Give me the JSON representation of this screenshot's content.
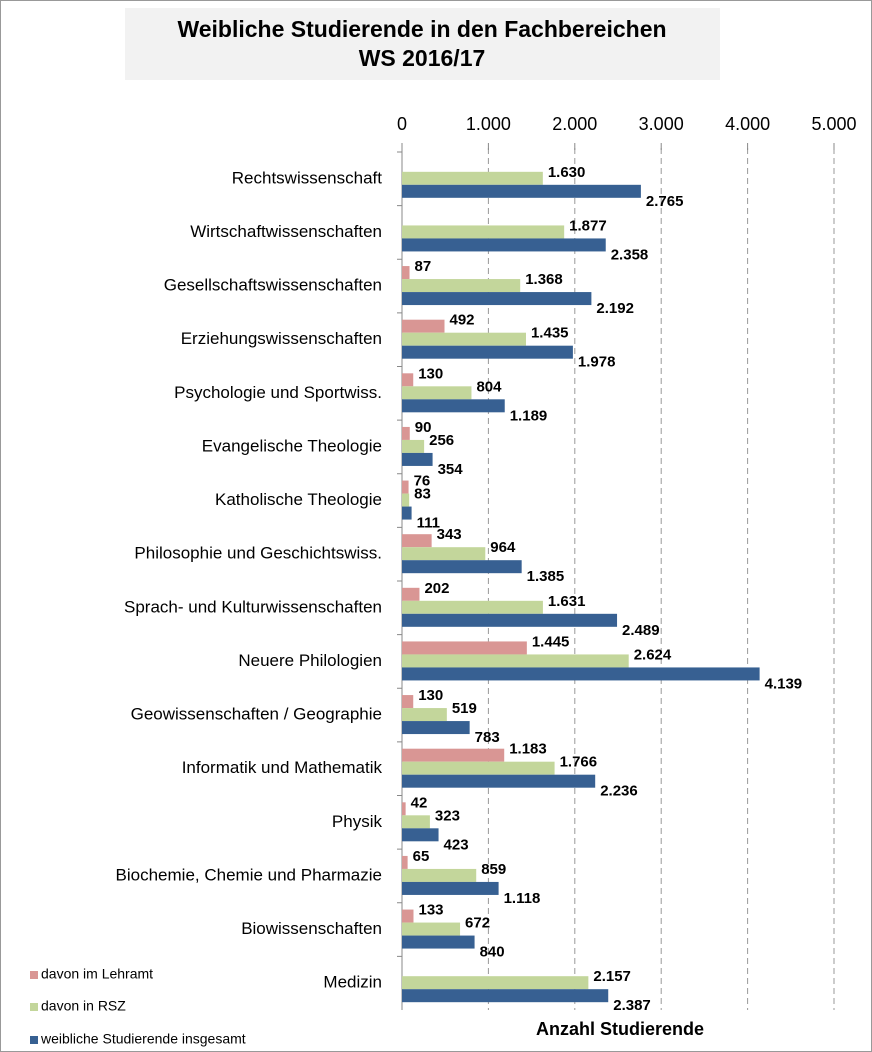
{
  "chart_data": {
    "type": "bar",
    "orientation": "horizontal",
    "title": "Weibliche Studierende in den Fachbereichen",
    "subtitle": "WS 2016/17",
    "x_label": "Anzahl Studierende",
    "categories": [
      "Rechtswissenschaft",
      "Wirtschaftwissenschaften",
      "Gesellschaftswissenschaften",
      "Erziehungswissenschaften",
      "Psychologie und Sportwiss.",
      "Evangelische Theologie",
      "Katholische Theologie",
      "Philosophie und Geschichtswiss.",
      "Sprach- und Kulturwissenschaften",
      "Neuere Philologien",
      "Geowissenschaften / Geographie",
      "Informatik und Mathematik",
      "Physik",
      "Biochemie, Chemie und Pharmazie",
      "Biowissenschaften",
      "Medizin"
    ],
    "series": [
      {
        "name": "davon im Lehramt",
        "color": "#d99694",
        "values": [
          null,
          null,
          87,
          492,
          130,
          90,
          76,
          343,
          202,
          1445,
          130,
          1183,
          42,
          65,
          133,
          null
        ],
        "value_labels": [
          null,
          null,
          "87",
          "492",
          "130",
          "90",
          "76",
          "343",
          "202",
          "1.445",
          "130",
          "1.183",
          "42",
          "65",
          "133",
          null
        ]
      },
      {
        "name": "davon in RSZ",
        "color": "#c3d69b",
        "values": [
          1630,
          1877,
          1368,
          1435,
          804,
          256,
          83,
          964,
          1631,
          2624,
          519,
          1766,
          323,
          859,
          672,
          2157
        ],
        "value_labels": [
          "1.630",
          "1.877",
          "1.368",
          "1.435",
          "804",
          "256",
          "83",
          "964",
          "1.631",
          "2.624",
          "519",
          "1.766",
          "323",
          "859",
          "672",
          "2.157"
        ]
      },
      {
        "name": "weibliche Studierende insgesamt",
        "color": "#376092",
        "values": [
          2765,
          2358,
          2192,
          1978,
          1189,
          354,
          111,
          1385,
          2489,
          4139,
          783,
          2236,
          423,
          1118,
          840,
          2387
        ],
        "value_labels": [
          "2.765",
          "2.358",
          "2.192",
          "1.978",
          "1.189",
          "354",
          "111",
          "1.385",
          "2.489",
          "4.139",
          "783",
          "2.236",
          "423",
          "1.118",
          "840",
          "2.387"
        ]
      }
    ],
    "xlim": [
      0,
      5000
    ],
    "xticks": [
      0,
      {
        "value": 1000,
        "label": "1.000"
      },
      {
        "value": 2000,
        "label": "2.000"
      },
      {
        "value": 3000,
        "label": "3.000"
      },
      {
        "value": 4000,
        "label": "4.000"
      },
      {
        "value": 5000,
        "label": "5.000"
      }
    ],
    "grid": true,
    "legend": "bottom-left"
  }
}
